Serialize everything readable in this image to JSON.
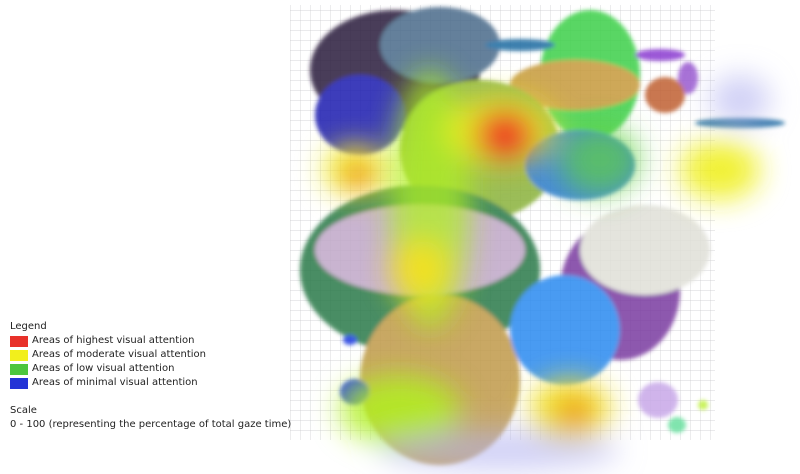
{
  "legend": {
    "title": "Legend",
    "items": [
      {
        "label": "Areas of highest visual attention",
        "color": "#e8312a"
      },
      {
        "label": "Areas of moderate visual attention",
        "color": "#f2ef1c"
      },
      {
        "label": "Areas of low visual attention",
        "color": "#4cc63d"
      },
      {
        "label": "Areas of minimal visual attention",
        "color": "#2434d6"
      }
    ]
  },
  "scale": {
    "title": "Scale",
    "text": "0 - 100 (representing the percentage of total gaze time)"
  }
}
